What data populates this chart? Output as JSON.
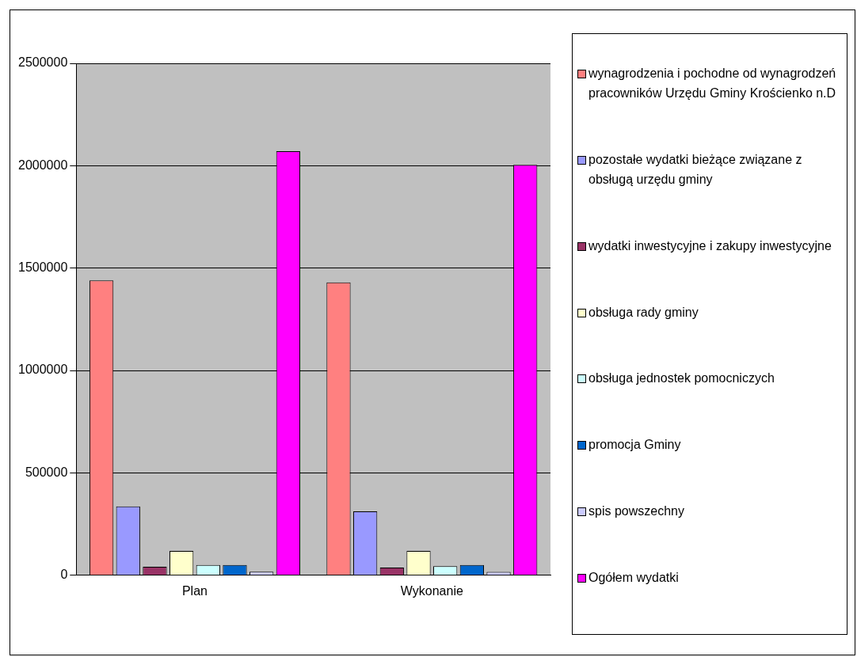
{
  "chart_data": {
    "type": "bar",
    "categories": [
      "Plan",
      "Wykonanie"
    ],
    "series": [
      {
        "name": "wynagrodzenia i pochodne od wynagrodzeń pracowników Urzędu Gminy Krościenko n.D",
        "color": "#ff8080",
        "values": [
          1440000,
          1430000
        ]
      },
      {
        "name": "pozostałe wydatki bieżące związane z obsługą urzędu gminy",
        "color": "#9999ff",
        "values": [
          336000,
          312000
        ]
      },
      {
        "name": "wydatki inwestycyjne i zakupy inwestycyjne",
        "color": "#993366",
        "values": [
          42000,
          38000
        ]
      },
      {
        "name": "obsługa rady gminy",
        "color": "#ffffcc",
        "values": [
          119000,
          119000
        ]
      },
      {
        "name": "obsługa jednostek pomocniczych",
        "color": "#ccffff",
        "values": [
          50000,
          45000
        ]
      },
      {
        "name": "promocja Gminy",
        "color": "#0066cc",
        "values": [
          50000,
          50000
        ]
      },
      {
        "name": "spis powszechny",
        "color": "#ccccff",
        "values": [
          18000,
          17000
        ]
      },
      {
        "name": "Ogółem wydatki",
        "color": "#ff00ff",
        "values": [
          2071000,
          2004000
        ]
      }
    ],
    "ylim": [
      0,
      2500000
    ],
    "yticks": [
      0,
      500000,
      1000000,
      1500000,
      2000000,
      2500000
    ],
    "grid": "y",
    "legend": "right"
  }
}
